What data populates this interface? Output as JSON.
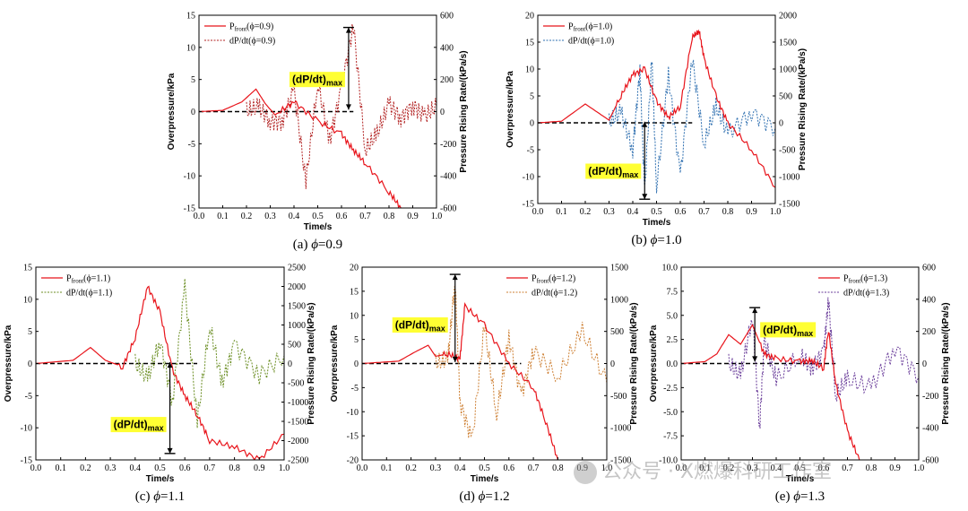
{
  "watermark": {
    "text": "公众号 · X燃爆科研工作室"
  },
  "colors": {
    "red": "#e8141b",
    "ref": "#000000"
  },
  "chart_data": [
    {
      "id": "a",
      "type": "line",
      "caption_prefix": "(a) ",
      "caption_value": "=0.9",
      "xlabel": "Time/s",
      "ylabel": "Overpressure/kPa",
      "y2label": "Pressure Rising Rate/(kPa/s)",
      "xlim": [
        0,
        1.0
      ],
      "ylim": [
        -15,
        15
      ],
      "y2lim": [
        -600,
        600
      ],
      "xticks": [
        "0.0",
        "0.1",
        "0.2",
        "0.3",
        "0.4",
        "0.5",
        "0.6",
        "0.7",
        "0.8",
        "0.9",
        "1.0"
      ],
      "yticks": [
        "15",
        "10",
        "5",
        "0",
        "-5",
        "-10",
        "-15"
      ],
      "y2ticks": [
        "600",
        "400",
        "200",
        "0",
        "-200",
        "-400",
        "-600"
      ],
      "legend": {
        "p_main": "P",
        "p_sub": "front",
        "p_tail": "(ϕ=0.9)",
        "d_label": "dP/dt(ϕ=0.9)",
        "position": "top-left"
      },
      "annotation": {
        "label": "(dP/dt)",
        "sub": "max",
        "x": 0.63,
        "y_from": 0.3,
        "y_to": 13.1
      },
      "color_d": "#b22222",
      "series": [
        {
          "name": "P_front",
          "x": [
            0,
            0.1,
            0.18,
            0.24,
            0.28,
            0.32,
            0.4,
            0.5,
            0.6,
            0.65,
            0.7,
            0.8,
            0.85
          ],
          "y": [
            0,
            0.2,
            1.5,
            3.5,
            1.2,
            -0.5,
            1.5,
            -1.5,
            -3.5,
            -6,
            -8,
            -12.5,
            -15
          ]
        },
        {
          "name": "dP/dt",
          "x": [
            0.2,
            0.25,
            0.3,
            0.35,
            0.4,
            0.45,
            0.5,
            0.55,
            0.6,
            0.65,
            0.7,
            0.75,
            0.8,
            0.85,
            0.9,
            0.95,
            1.0
          ],
          "y": [
            0,
            30,
            -60,
            -60,
            140,
            -440,
            180,
            -180,
            150,
            540,
            -240,
            -140,
            50,
            -40,
            40,
            -30,
            30
          ]
        }
      ]
    },
    {
      "id": "b",
      "type": "line",
      "caption_prefix": "(b) ",
      "caption_value": "=1.0",
      "xlabel": "Time/s",
      "ylabel": "Overpressure/kPa",
      "y2label": "Pressure Rising Rate/(kPa/s)",
      "xlim": [
        0,
        1.0
      ],
      "ylim": [
        -15,
        20
      ],
      "y2lim": [
        -1500,
        2000
      ],
      "xticks": [
        "0.0",
        "0.1",
        "0.2",
        "0.3",
        "0.4",
        "0.5",
        "0.6",
        "0.7",
        "0.8",
        "0.9",
        "1.0"
      ],
      "yticks": [
        "20",
        "15",
        "10",
        "5",
        "0",
        "-5",
        "-10",
        "-15"
      ],
      "y2ticks": [
        "2000",
        "1500",
        "1000",
        "500",
        "0",
        "-500",
        "-1000",
        "-1500"
      ],
      "legend": {
        "p_main": "P",
        "p_sub": "front",
        "p_tail": "(ϕ=1.0)",
        "d_label": "dP/dt(ϕ=1.0)",
        "position": "top-left"
      },
      "annotation": {
        "label": "(dP/dt)",
        "sub": "max",
        "x": 0.45,
        "y_from": 0.2,
        "y_to": -14.2
      },
      "color_d": "#2e6fb0",
      "series": [
        {
          "name": "P_front",
          "x": [
            0,
            0.1,
            0.2,
            0.25,
            0.3,
            0.35,
            0.4,
            0.45,
            0.5,
            0.55,
            0.6,
            0.65,
            0.68,
            0.7,
            0.75,
            0.8,
            0.9,
            1.0
          ],
          "y": [
            0,
            0.3,
            3.5,
            2,
            0.5,
            5,
            9,
            10,
            4,
            1,
            3,
            16,
            17,
            12,
            5,
            0,
            -5,
            -12
          ]
        },
        {
          "name": "dP/dt",
          "x": [
            0.3,
            0.35,
            0.4,
            0.43,
            0.45,
            0.48,
            0.5,
            0.55,
            0.6,
            0.65,
            0.7,
            0.75,
            0.8,
            0.9,
            1.0
          ],
          "y": [
            0,
            200,
            -500,
            1000,
            -1300,
            1200,
            -1200,
            900,
            -1000,
            1200,
            -400,
            300,
            -200,
            200,
            -100
          ]
        }
      ]
    },
    {
      "id": "c",
      "type": "line",
      "caption_prefix": "(c) ",
      "caption_value": "=1.1",
      "xlabel": "Time/s",
      "ylabel": "Overpressure/kPa",
      "y2label": "Pressure Rising Rate/(kPa/s)",
      "xlim": [
        0,
        1.0
      ],
      "ylim": [
        -15,
        15
      ],
      "y2lim": [
        -2500,
        2500
      ],
      "xticks": [
        "0.0",
        "0.1",
        "0.2",
        "0.3",
        "0.4",
        "0.5",
        "0.6",
        "0.7",
        "0.8",
        "0.9",
        "1.0"
      ],
      "yticks": [
        "15",
        "10",
        "5",
        "0",
        "-5",
        "-10",
        "-15"
      ],
      "y2ticks": [
        "2500",
        "2000",
        "1500",
        "1000",
        "500",
        "0",
        "-500",
        "-1000",
        "-1500",
        "-2000",
        "-2500"
      ],
      "legend": {
        "p_main": "P",
        "p_sub": "front",
        "p_tail": "(ϕ=1.1)",
        "d_label": "dP/dt(ϕ=1.1)",
        "position": "top-left"
      },
      "annotation": {
        "label": "(dP/dt)",
        "sub": "max",
        "x": 0.54,
        "y_from": 0.2,
        "y_to": -14
      },
      "color_d": "#6b8e23",
      "series": [
        {
          "name": "P_front",
          "x": [
            0,
            0.15,
            0.22,
            0.28,
            0.35,
            0.4,
            0.45,
            0.5,
            0.55,
            0.6,
            0.65,
            0.7,
            0.8,
            0.9,
            1.0
          ],
          "y": [
            0,
            0.5,
            2.5,
            0.5,
            -0.5,
            4,
            12,
            8,
            -1,
            -5,
            -8,
            -12,
            -13,
            -15,
            -11
          ]
        },
        {
          "name": "dP/dt",
          "x": [
            0.4,
            0.45,
            0.5,
            0.55,
            0.6,
            0.65,
            0.7,
            0.75,
            0.8,
            0.9,
            1.0
          ],
          "y": [
            0,
            -400,
            600,
            -1000,
            2000,
            -1500,
            1000,
            -500,
            500,
            -300,
            200
          ]
        }
      ]
    },
    {
      "id": "d",
      "type": "line",
      "caption_prefix": "(d) ",
      "caption_value": "=1.2",
      "xlabel": "Time/s",
      "ylabel": "Overpressure/kPa",
      "y2label": "Pressure Rising Rate/(kPa/s)",
      "xlim": [
        0,
        1.0
      ],
      "ylim": [
        -20,
        20
      ],
      "y2lim": [
        -1500,
        1500
      ],
      "xticks": [
        "0.0",
        "0.1",
        "0.2",
        "0.3",
        "0.4",
        "0.5",
        "0.6",
        "0.7",
        "0.8",
        "0.9",
        "1.0"
      ],
      "yticks": [
        "20",
        "15",
        "10",
        "5",
        "0",
        "-5",
        "-10",
        "-15",
        "-20"
      ],
      "y2ticks": [
        "1500",
        "1000",
        "500",
        "0",
        "-500",
        "-1000",
        "-1500"
      ],
      "legend": {
        "p_main": "P",
        "p_sub": "front",
        "p_tail": "(ϕ=1.2)",
        "d_label": "dP/dt(ϕ=1.2)",
        "position": "top-right"
      },
      "annotation": {
        "label": "(dP/dt)",
        "sub": "max",
        "x": 0.38,
        "y_from": 0.3,
        "y_to": 18.5
      },
      "color_d": "#cd7f32",
      "series": [
        {
          "name": "P_front",
          "x": [
            0,
            0.15,
            0.22,
            0.27,
            0.3,
            0.35,
            0.4,
            0.42,
            0.5,
            0.6,
            0.7,
            0.75,
            0.8
          ],
          "y": [
            0,
            0.5,
            2.5,
            3.8,
            1.5,
            2,
            1,
            12,
            8,
            0,
            -5,
            -12,
            -20
          ]
        },
        {
          "name": "dP/dt",
          "x": [
            0.3,
            0.35,
            0.38,
            0.4,
            0.45,
            0.5,
            0.55,
            0.6,
            0.65,
            0.7,
            0.8,
            0.9,
            1.0
          ],
          "y": [
            0,
            50,
            1300,
            -600,
            -1200,
            600,
            -800,
            400,
            -500,
            200,
            -200,
            500,
            -300
          ]
        }
      ]
    },
    {
      "id": "e",
      "type": "line",
      "caption_prefix": "(e) ",
      "caption_value": "=1.3",
      "xlabel": "Time/s",
      "ylabel": "Overpressure/kPa",
      "y2label": "Pressure Rising Rate/(kPa/s)",
      "xlim": [
        0,
        1.0
      ],
      "ylim": [
        -10,
        10
      ],
      "y2lim": [
        -600,
        600
      ],
      "xticks": [
        "0.0",
        "0.1",
        "0.2",
        "0.3",
        "0.4",
        "0.5",
        "0.6",
        "0.7",
        "0.8",
        "0.9",
        "1.0"
      ],
      "yticks": [
        "10.0",
        "7.5",
        "5.0",
        "2.5",
        "0.0",
        "-2.5",
        "-5.0",
        "-7.5",
        "-10.0"
      ],
      "y2ticks": [
        "600",
        "400",
        "200",
        "0",
        "-200",
        "-400",
        "-600"
      ],
      "legend": {
        "p_main": "P",
        "p_sub": "front",
        "p_tail": "(ϕ=1.3)",
        "d_label": "dP/dt(ϕ=1.3)",
        "position": "top-right"
      },
      "annotation": {
        "label": "(dP/dt)",
        "sub": "max",
        "x": 0.31,
        "y_from": 0.2,
        "y_to": 5.8
      },
      "color_d": "#6a3d9a",
      "series": [
        {
          "name": "P_front",
          "x": [
            0,
            0.1,
            0.15,
            0.2,
            0.25,
            0.3,
            0.35,
            0.4,
            0.5,
            0.55,
            0.6,
            0.62,
            0.65,
            0.7,
            0.75
          ],
          "y": [
            0,
            0.2,
            1,
            3,
            2,
            4,
            1,
            0.5,
            0.2,
            0.3,
            -0.5,
            3.5,
            -2,
            -7,
            -10
          ]
        },
        {
          "name": "dP/dt",
          "x": [
            0.2,
            0.25,
            0.3,
            0.33,
            0.35,
            0.4,
            0.5,
            0.55,
            0.6,
            0.62,
            0.65,
            0.7,
            0.8,
            0.9,
            1.0
          ],
          "y": [
            0,
            -80,
            300,
            -400,
            150,
            -100,
            50,
            -30,
            80,
            400,
            -200,
            -100,
            -150,
            100,
            -80
          ]
        }
      ]
    }
  ]
}
